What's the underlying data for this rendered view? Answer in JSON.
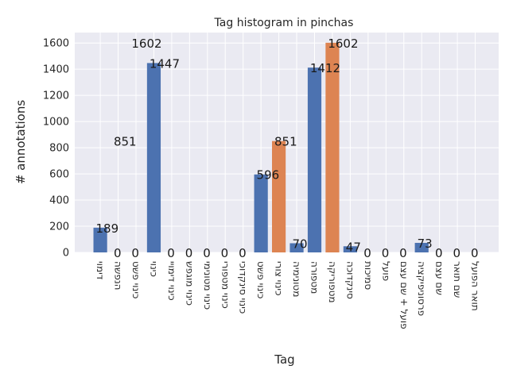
{
  "chart_data": {
    "type": "bar",
    "title": "Tag histogram in pinchas",
    "xlabel": "Tag",
    "ylabel": "# annotations",
    "ylim": [
      0,
      1680
    ],
    "yticks": [
      "0",
      "200",
      "400",
      "600",
      "800",
      "1000",
      "1200",
      "1400",
      "1600"
    ],
    "grid": true,
    "colors": {
      "primary": "#4c72b0",
      "highlight": "#dd8452",
      "background": "#eaeaf2"
    },
    "categories": [
      "דימוי",
      "הנפשה",
      "כינוי פשט",
      "כינוי",
      "כינוי דימויי",
      "כינוי מוגפש",
      "כינוי מטונימי",
      "כינוי מטפורי",
      "כינוי סינקדוכי",
      "כינוי פשט",
      "כינוי צורי",
      "מטונימיה",
      "מטפורה",
      "מטפוריקה",
      "סינקדוכה",
      "סמיכות",
      "פועל",
      "פועל + שם עצם",
      "פרסוניפיקציה",
      "שם עצם",
      "שם תואר",
      "תואר הפועל"
    ],
    "values": [
      189,
      0,
      0,
      1447,
      0,
      0,
      0,
      0,
      0,
      596,
      851,
      70,
      1412,
      1602,
      47,
      0,
      0,
      0,
      73,
      0,
      0,
      0
    ],
    "highlighted": [
      false,
      false,
      false,
      false,
      false,
      false,
      false,
      false,
      false,
      false,
      true,
      false,
      false,
      true,
      false,
      false,
      false,
      false,
      false,
      false,
      false,
      false
    ],
    "data_labels": [
      "189",
      "0",
      "0",
      "1447",
      "0",
      "0",
      "0",
      "0",
      "0",
      "596",
      "851",
      "70",
      "1412",
      "1602",
      "47",
      "0",
      "0",
      "0",
      "73",
      "0",
      "0",
      "0"
    ],
    "annotations": [
      {
        "text": "851",
        "x": 1,
        "y": 851
      },
      {
        "text": "1602",
        "x": 2,
        "y": 1602
      }
    ]
  }
}
